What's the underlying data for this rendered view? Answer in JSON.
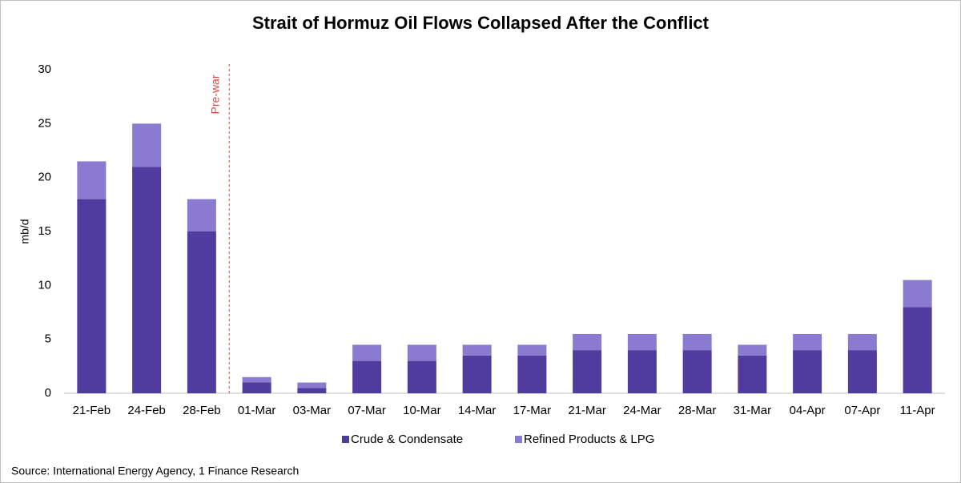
{
  "chart_data": {
    "type": "stacked_bar",
    "title": "Strait of Hormuz Oil Flows Collapsed After the Conflict",
    "y_label": "mb/d",
    "annotation": "Pre-war",
    "source": "Source: International Energy Agency, 1 Finance Research",
    "categories": [
      "21-Feb",
      "24-Feb",
      "28-Feb",
      "01-Mar",
      "03-Mar",
      "07-Mar",
      "10-Mar",
      "14-Mar",
      "17-Mar",
      "21-Mar",
      "24-Mar",
      "28-Mar",
      "31-Mar",
      "04-Apr",
      "07-Apr",
      "11-Apr"
    ],
    "series": [
      {
        "name": "Crude & Condensate",
        "color": "#503b9f",
        "values": [
          18,
          21,
          15,
          1,
          0.5,
          3,
          3,
          3.5,
          3.5,
          4,
          4,
          4,
          3.5,
          4,
          4,
          8
        ]
      },
      {
        "name": "Refined Products & LPG",
        "color": "#8b7bd0",
        "values": [
          3.5,
          4,
          3,
          0.5,
          0.5,
          1.5,
          1.5,
          1,
          1,
          1.5,
          1.5,
          1.5,
          1,
          1.5,
          1.5,
          2.5
        ]
      }
    ],
    "ylim": [
      0,
      30
    ],
    "yticks": [
      0,
      5,
      10,
      15,
      20,
      25,
      30
    ],
    "grid": false
  }
}
